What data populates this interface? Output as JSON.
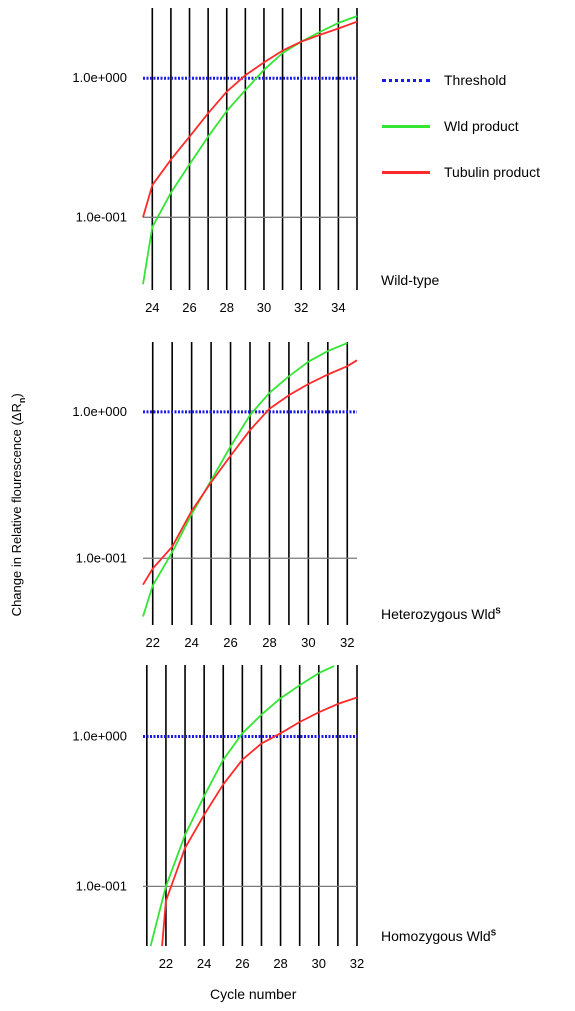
{
  "legend": {
    "threshold": "Threshold",
    "wld": "Wld product",
    "tubulin": "Tubulin product"
  },
  "colors": {
    "threshold": "#1a1ae6",
    "wld": "#33e633",
    "tubulin": "#ff2a2a",
    "gridline": "#000000"
  },
  "axis": {
    "ylabel_main": "Change in Relative flourescence (ΔR",
    "ylabel_sub": "n",
    "ylabel_close": ")",
    "xlabel": "Cycle  number",
    "ytick_labels": [
      "1.0e+000",
      "1.0e-001"
    ]
  },
  "panels": {
    "p1": {
      "title": "Wild-type",
      "sup": ""
    },
    "p2": {
      "title": "Heterozygous Wld",
      "sup": "S"
    },
    "p3": {
      "title": "Homozygous Wld",
      "sup": "S"
    }
  },
  "chart_data": [
    {
      "type": "line",
      "title": "Wild-type",
      "xlabel": "Cycle  number",
      "ylabel": "Change in Relative flourescence (ΔRn)",
      "y_scale": "log",
      "xlim": [
        23.5,
        35.0
      ],
      "ylim": [
        0.03,
        3.2
      ],
      "xticks": [
        24,
        26,
        28,
        30,
        32,
        34
      ],
      "yticks": [
        1.0,
        0.1
      ],
      "threshold": 1.0,
      "series": [
        {
          "name": "Wld product",
          "x": [
            23.5,
            24,
            25,
            26,
            27,
            28,
            29,
            30,
            31,
            32,
            33,
            34,
            35
          ],
          "values": [
            0.033,
            0.085,
            0.15,
            0.24,
            0.38,
            0.58,
            0.82,
            1.15,
            1.52,
            1.83,
            2.15,
            2.5,
            2.8
          ]
        },
        {
          "name": "Tubulin product",
          "x": [
            23.5,
            24,
            25,
            26,
            27,
            28,
            29,
            30,
            31,
            32,
            33,
            34,
            35
          ],
          "values": [
            0.1,
            0.17,
            0.26,
            0.38,
            0.56,
            0.8,
            1.05,
            1.3,
            1.58,
            1.83,
            2.05,
            2.28,
            2.55
          ]
        }
      ]
    },
    {
      "type": "line",
      "title": "Heterozygous WldS",
      "xlabel": "Cycle  number",
      "ylabel": "Change in Relative flourescence (ΔRn)",
      "y_scale": "log",
      "xlim": [
        21.5,
        32.5
      ],
      "ylim": [
        0.035,
        3.0
      ],
      "xticks": [
        22,
        24,
        26,
        28,
        30,
        32
      ],
      "yticks": [
        1.0,
        0.1
      ],
      "threshold": 1.0,
      "series": [
        {
          "name": "Wld product",
          "x": [
            21.5,
            22,
            23,
            24,
            25,
            26,
            27,
            28,
            29,
            30,
            31,
            32
          ],
          "values": [
            0.04,
            0.065,
            0.11,
            0.2,
            0.34,
            0.58,
            0.95,
            1.35,
            1.75,
            2.2,
            2.6,
            2.95
          ]
        },
        {
          "name": "Tubulin product",
          "x": [
            21.5,
            22,
            23,
            24,
            25,
            26,
            27,
            28,
            29,
            30,
            31,
            32,
            32.5
          ],
          "values": [
            0.066,
            0.085,
            0.12,
            0.21,
            0.33,
            0.5,
            0.75,
            1.05,
            1.3,
            1.55,
            1.8,
            2.05,
            2.25
          ]
        }
      ]
    },
    {
      "type": "line",
      "title": "Homozygous WldS",
      "xlabel": "Cycle  number",
      "ylabel": "Change in Relative flourescence (ΔRn)",
      "y_scale": "log",
      "xlim": [
        20.8,
        32.0
      ],
      "ylim": [
        0.04,
        3.0
      ],
      "xticks": [
        22,
        24,
        26,
        28,
        30,
        32
      ],
      "yticks": [
        1.0,
        0.1
      ],
      "threshold": 1.0,
      "series": [
        {
          "name": "Wld product",
          "x": [
            21.2,
            22,
            23,
            24,
            25,
            26,
            27,
            28,
            29,
            30,
            30.8
          ],
          "values": [
            0.04,
            0.1,
            0.22,
            0.4,
            0.7,
            1.05,
            1.4,
            1.8,
            2.2,
            2.65,
            2.95
          ]
        },
        {
          "name": "Tubulin product",
          "x": [
            21.8,
            22,
            23,
            24,
            25,
            26,
            27,
            28,
            29,
            30,
            31,
            32
          ],
          "values": [
            0.04,
            0.08,
            0.18,
            0.3,
            0.48,
            0.7,
            0.9,
            1.05,
            1.25,
            1.45,
            1.65,
            1.82
          ]
        }
      ]
    }
  ]
}
